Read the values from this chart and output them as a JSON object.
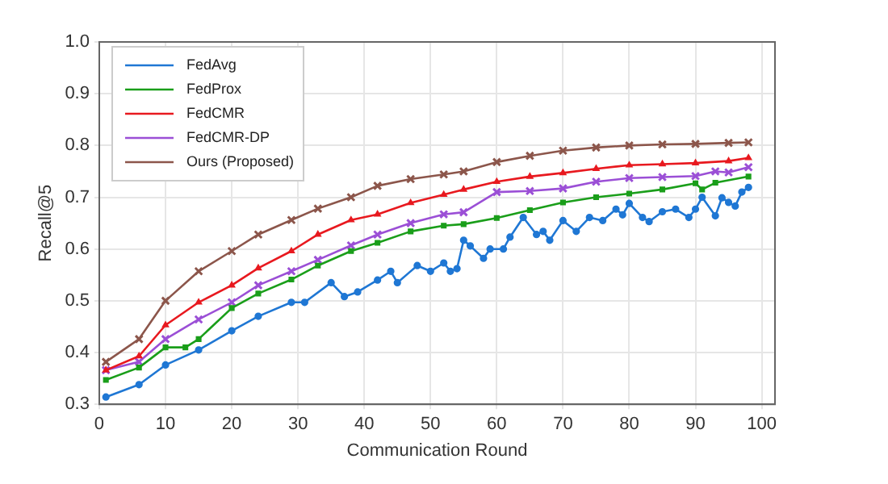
{
  "chart_data": {
    "type": "line",
    "xlabel": "Communication Round",
    "ylabel": "Recall@5",
    "xlim": [
      0,
      102
    ],
    "xticks": [
      0,
      10,
      20,
      30,
      40,
      50,
      60,
      70,
      80,
      90,
      100
    ],
    "ylim": [
      0.3,
      1.0
    ],
    "yticks": [
      {
        "value": 0.3,
        "label": "0.3"
      },
      {
        "value": 0.4,
        "label": "0.4"
      },
      {
        "value": 0.5,
        "label": "0.5"
      },
      {
        "value": 0.6,
        "label": "0.6"
      },
      {
        "value": 0.7,
        "label": "0.7"
      },
      {
        "value": 0.8,
        "label": "0.8"
      },
      {
        "value": 0.9,
        "label": "0.9"
      },
      {
        "value": 1.0,
        "label": "1.0"
      }
    ],
    "grid": true,
    "legend": "top left",
    "line_style": "solid",
    "series": [
      {
        "name": "FedAvg",
        "color": "#1f77d4",
        "marker": "circle",
        "x": [
          1,
          6,
          10,
          15,
          20,
          24,
          29,
          31,
          35,
          37,
          39,
          42,
          44,
          45,
          48,
          50,
          52,
          53,
          54,
          55,
          56,
          58,
          59,
          61,
          62,
          64,
          66,
          67,
          68,
          70,
          72,
          74,
          76,
          78,
          79,
          80,
          82,
          83,
          85,
          87,
          89,
          90,
          91,
          93,
          94,
          95,
          96,
          97,
          98
        ],
        "values": [
          0.314,
          0.338,
          0.376,
          0.405,
          0.442,
          0.47,
          0.497,
          0.497,
          0.535,
          0.508,
          0.517,
          0.54,
          0.557,
          0.535,
          0.568,
          0.557,
          0.573,
          0.557,
          0.562,
          0.617,
          0.606,
          0.582,
          0.6,
          0.6,
          0.623,
          0.661,
          0.628,
          0.634,
          0.617,
          0.655,
          0.634,
          0.661,
          0.655,
          0.677,
          0.666,
          0.688,
          0.661,
          0.653,
          0.672,
          0.677,
          0.661,
          0.677,
          0.7,
          0.664,
          0.699,
          0.69,
          0.683,
          0.71,
          0.719
        ]
      },
      {
        "name": "FedProx",
        "color": "#1a9e1a",
        "marker": "square",
        "x": [
          1,
          6,
          10,
          13,
          15,
          20,
          24,
          29,
          33,
          38,
          42,
          47,
          52,
          55,
          60,
          65,
          70,
          75,
          80,
          85,
          90,
          91,
          93,
          98
        ],
        "values": [
          0.347,
          0.371,
          0.41,
          0.41,
          0.426,
          0.486,
          0.514,
          0.541,
          0.568,
          0.596,
          0.612,
          0.634,
          0.645,
          0.648,
          0.66,
          0.675,
          0.69,
          0.7,
          0.707,
          0.715,
          0.727,
          0.715,
          0.728,
          0.74
        ]
      },
      {
        "name": "FedCMR",
        "color": "#e8191f",
        "marker": "triangle",
        "x": [
          1,
          6,
          10,
          15,
          20,
          24,
          29,
          33,
          38,
          42,
          47,
          52,
          55,
          60,
          65,
          70,
          75,
          80,
          85,
          90,
          95,
          98
        ],
        "values": [
          0.366,
          0.393,
          0.453,
          0.497,
          0.53,
          0.563,
          0.596,
          0.628,
          0.656,
          0.667,
          0.689,
          0.705,
          0.715,
          0.73,
          0.74,
          0.747,
          0.755,
          0.762,
          0.764,
          0.766,
          0.77,
          0.776
        ]
      },
      {
        "name": "FedCMR-DP",
        "color": "#9b4fd6",
        "marker": "cross",
        "x": [
          1,
          6,
          10,
          15,
          20,
          24,
          29,
          33,
          38,
          42,
          47,
          52,
          55,
          60,
          65,
          70,
          75,
          80,
          85,
          90,
          93,
          95,
          98
        ],
        "values": [
          0.366,
          0.382,
          0.426,
          0.464,
          0.497,
          0.53,
          0.557,
          0.579,
          0.607,
          0.628,
          0.65,
          0.667,
          0.671,
          0.71,
          0.712,
          0.717,
          0.73,
          0.737,
          0.739,
          0.741,
          0.75,
          0.748,
          0.758
        ]
      },
      {
        "name": "Ours (Proposed)",
        "color": "#8c564b",
        "marker": "cross",
        "x": [
          1,
          6,
          10,
          15,
          20,
          24,
          29,
          33,
          38,
          42,
          47,
          52,
          55,
          60,
          65,
          70,
          75,
          80,
          85,
          90,
          95,
          98
        ],
        "values": [
          0.382,
          0.426,
          0.5,
          0.557,
          0.596,
          0.628,
          0.656,
          0.678,
          0.7,
          0.722,
          0.735,
          0.744,
          0.75,
          0.768,
          0.78,
          0.79,
          0.796,
          0.8,
          0.802,
          0.803,
          0.805,
          0.806
        ]
      }
    ]
  }
}
